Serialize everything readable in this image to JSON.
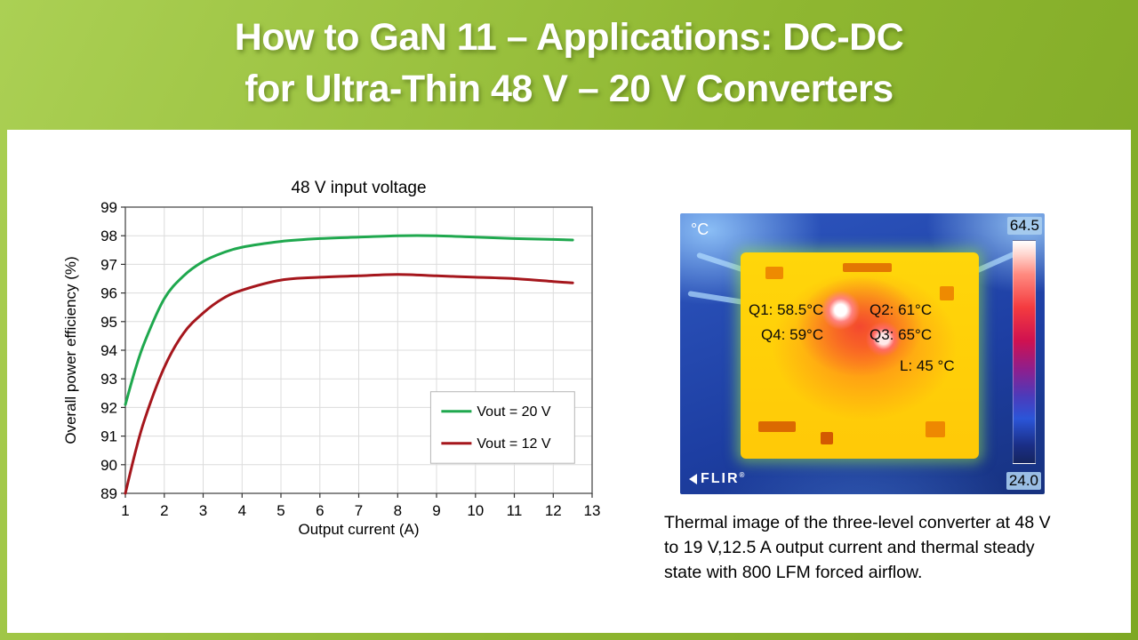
{
  "banner": {
    "title_line1": "How to GaN 11 – Applications: DC-DC",
    "title_line2": "for Ultra-Thin 48 V – 20 V Converters"
  },
  "chart_data": {
    "type": "line",
    "title": "48 V input voltage",
    "xlabel": "Output current (A)",
    "ylabel": "Overall power efficiency (%)",
    "xlim": [
      1,
      13
    ],
    "ylim": [
      89,
      99
    ],
    "xticks": [
      1,
      2,
      3,
      4,
      5,
      6,
      7,
      8,
      9,
      10,
      11,
      12,
      13
    ],
    "yticks": [
      89,
      90,
      91,
      92,
      93,
      94,
      95,
      96,
      97,
      98,
      99
    ],
    "grid": true,
    "legend_position": "inside-lower-right",
    "x": [
      1,
      1.25,
      1.5,
      2,
      2.5,
      3,
      3.5,
      4,
      5,
      6,
      7,
      8,
      9,
      10,
      11,
      12,
      12.5
    ],
    "series": [
      {
        "name": "Vout = 20 V",
        "color": "#1fa84e",
        "y": [
          92.1,
          93.3,
          94.3,
          95.8,
          96.6,
          97.1,
          97.4,
          97.6,
          97.8,
          97.9,
          97.95,
          98.0,
          98.0,
          97.95,
          97.9,
          97.87,
          97.85
        ]
      },
      {
        "name": "Vout = 12 V",
        "color": "#a5161c",
        "y": [
          89.0,
          90.4,
          91.6,
          93.4,
          94.6,
          95.3,
          95.8,
          96.1,
          96.45,
          96.55,
          96.6,
          96.65,
          96.6,
          96.55,
          96.5,
          96.4,
          96.35
        ]
      }
    ]
  },
  "thermal": {
    "unit_label": "°C",
    "scale_max": "64.5",
    "scale_min": "24.0",
    "annotations": {
      "q1": "Q1: 58.5°C",
      "q2": "Q2: 61°C",
      "q4": "Q4: 59°C",
      "q3": "Q3: 65°C",
      "l": "L: 45 °C"
    },
    "logo": "FLIR",
    "logo_reg": "®",
    "caption": "Thermal image of the three-level converter at 48 V to 19 V,12.5 A output current and thermal steady state with 800 LFM forced airflow."
  },
  "colors": {
    "banner_green": "#8fb731",
    "line_green": "#1fa84e",
    "line_red": "#a5161c"
  }
}
